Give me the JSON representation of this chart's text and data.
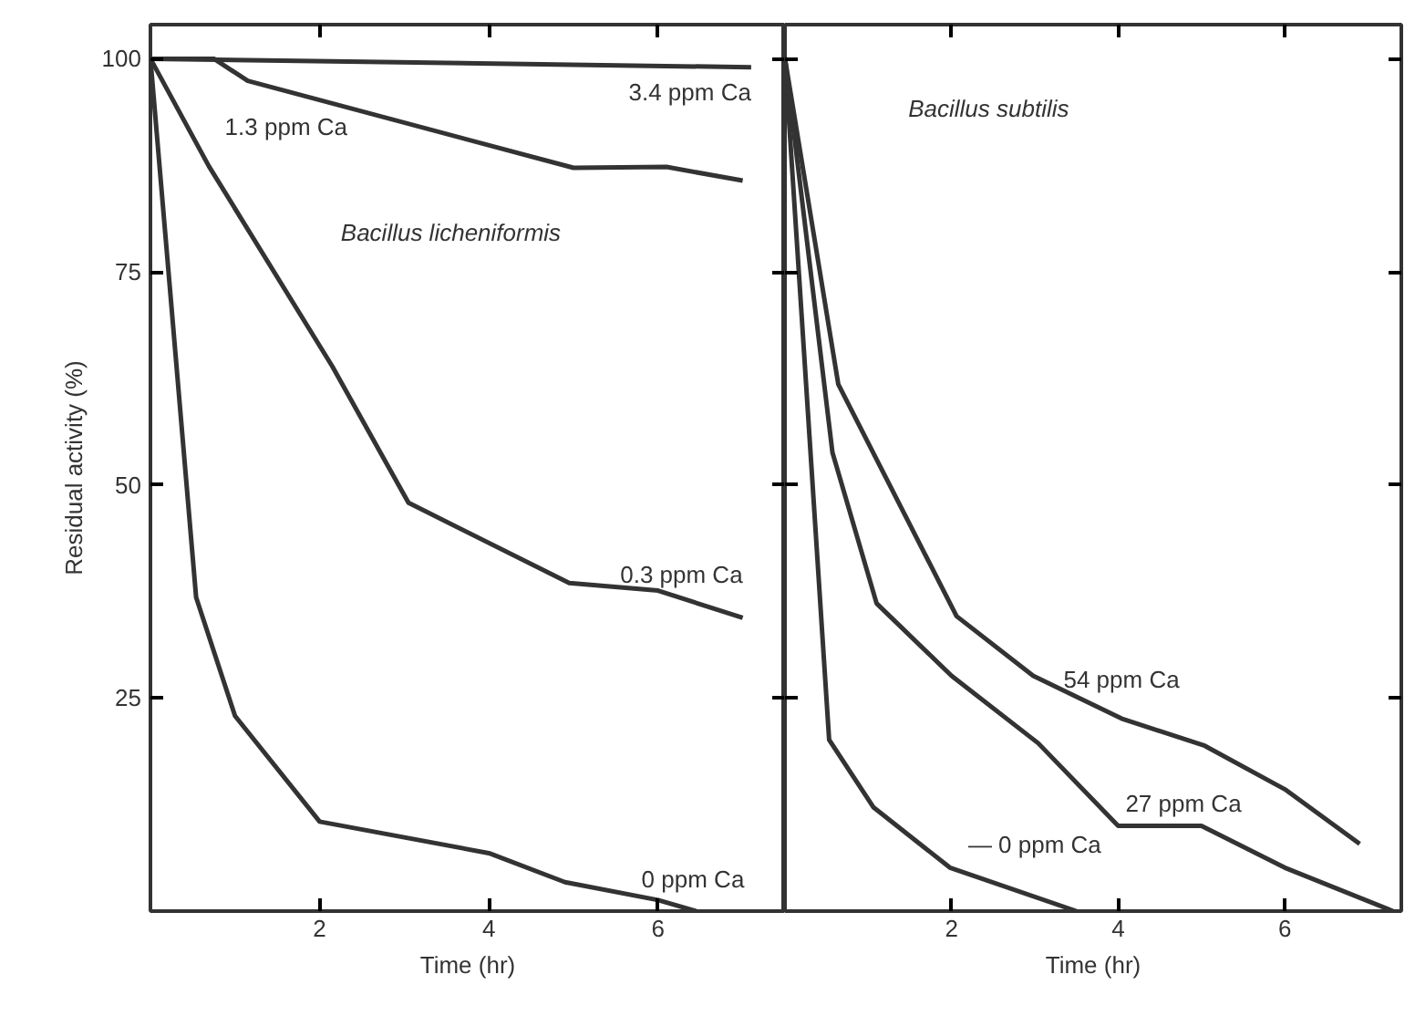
{
  "chart_data": [
    {
      "type": "line",
      "ylabel": "Residual activity (%)",
      "xlabel": "Time (hr)",
      "xlim": [
        0,
        7.5
      ],
      "ylim": [
        0,
        104
      ],
      "xticks": [
        2,
        4,
        6
      ],
      "yticks": [
        25,
        50,
        75,
        100
      ],
      "grid": false,
      "legend": false,
      "marker": "none",
      "annotations": [
        "Bacillus licheniformis"
      ],
      "series": [
        {
          "name": "3.4 ppm Ca",
          "color": "#333333",
          "x": [
            0,
            7.1
          ],
          "values": [
            100,
            99
          ]
        },
        {
          "name": "1.3 ppm Ca",
          "color": "#333333",
          "x": [
            0,
            0.75,
            1.15,
            5.0,
            6.1,
            7.0
          ],
          "values": [
            100,
            100,
            97.4,
            87.2,
            87.3,
            85.7
          ]
        },
        {
          "name": "0.3 ppm Ca",
          "color": "#333333",
          "x": [
            0,
            0.69,
            2.15,
            3.05,
            4.95,
            6.0,
            7.0
          ],
          "values": [
            100,
            87.4,
            63.9,
            47.9,
            38.5,
            37.6,
            34.4
          ]
        },
        {
          "name": "0  ppm Ca",
          "color": "#333333",
          "x": [
            0,
            0.54,
            1.0,
            2.0,
            4.0,
            4.9,
            6.0,
            6.45
          ],
          "values": [
            100,
            36.8,
            22.9,
            10.5,
            6.8,
            3.4,
            1.3,
            0
          ]
        }
      ]
    },
    {
      "type": "line",
      "xlabel": "Time (hr)",
      "xlim": [
        0,
        7.4
      ],
      "ylim": [
        0,
        104
      ],
      "xticks": [
        2,
        4,
        6
      ],
      "yticks": [
        25,
        50,
        75,
        100
      ],
      "tick_labels": "x",
      "grid": false,
      "legend": false,
      "marker": "none",
      "annotations": [
        "Bacillus subtilis"
      ],
      "series": [
        {
          "name": "54 ppm Ca",
          "color": "#333333",
          "x": [
            0,
            0.64,
            2.06,
            2.98,
            4.04,
            5.04,
            6.0,
            6.9
          ],
          "values": [
            100,
            61.8,
            34.6,
            27.6,
            22.6,
            19.4,
            14.3,
            7.9
          ]
        },
        {
          "name": "27 ppm Ca",
          "color": "#333333",
          "x": [
            0,
            0.57,
            1.1,
            2.0,
            3.04,
            4.0,
            5.0,
            6.0,
            7.3
          ],
          "values": [
            100,
            53.8,
            36.1,
            27.6,
            19.7,
            10.0,
            10.0,
            5.1,
            0
          ]
        },
        {
          "name": "— 0 ppm Ca",
          "color": "#333333",
          "x": [
            0,
            0.53,
            1.06,
            1.98,
            3.5
          ],
          "values": [
            100,
            20.1,
            12.2,
            5.1,
            0
          ]
        }
      ]
    }
  ]
}
